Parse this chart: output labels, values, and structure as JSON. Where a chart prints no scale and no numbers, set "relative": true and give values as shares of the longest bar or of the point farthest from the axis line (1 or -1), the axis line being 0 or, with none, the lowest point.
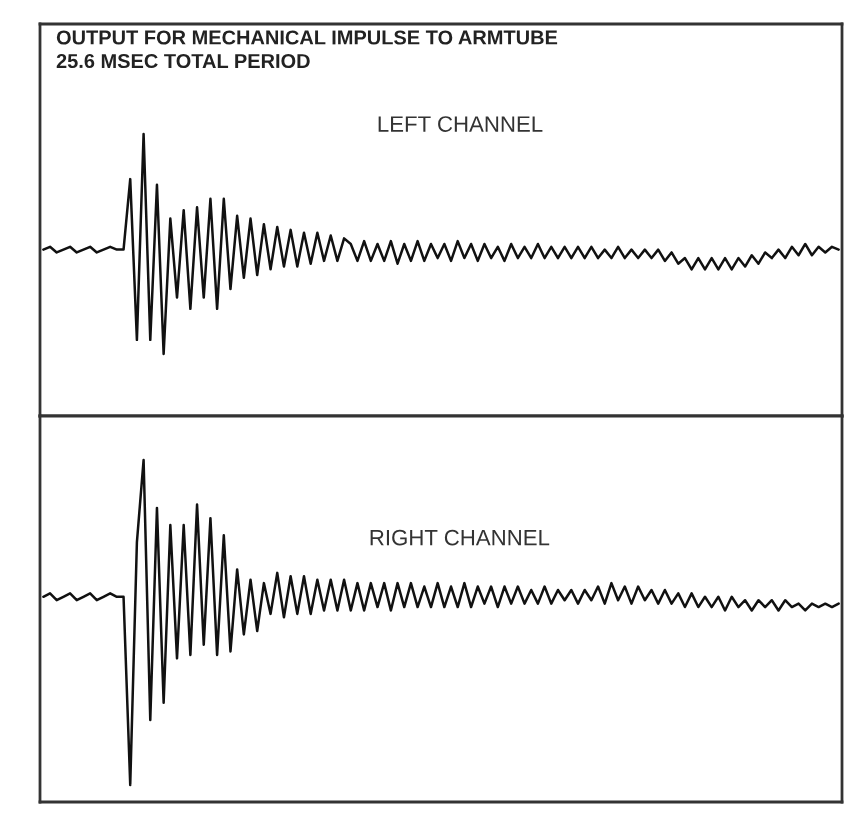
{
  "chart_data": [
    {
      "type": "line",
      "title": "OUTPUT FOR MECHANICAL IMPULSE TO ARMTUBE",
      "subtitle": "25.6 MSEC TOTAL PERIOD",
      "annotations": [
        "LEFT CHANNEL"
      ],
      "relative": true,
      "categories": [
        null,
        null,
        null,
        null,
        null,
        null,
        null,
        null,
        null,
        null,
        null,
        null,
        null,
        null,
        null,
        null,
        null,
        null,
        null,
        null,
        null,
        null,
        null,
        null,
        null,
        null,
        null,
        null,
        null,
        null,
        null,
        null,
        null,
        null,
        null,
        null,
        null,
        null,
        null,
        null,
        null,
        null,
        null,
        null,
        null,
        null,
        null,
        null,
        null,
        null,
        null,
        null,
        null,
        null,
        null,
        null,
        null,
        null,
        null,
        null,
        null,
        null,
        null,
        null,
        null,
        null,
        null,
        null,
        null,
        null,
        null,
        null,
        null,
        null,
        null,
        null,
        null,
        null,
        null,
        null,
        null,
        null,
        null,
        null,
        null,
        null,
        null,
        null,
        null,
        null,
        null,
        null,
        null,
        null,
        null,
        null,
        null,
        null,
        null,
        null,
        null,
        null,
        null,
        null,
        null,
        null,
        null,
        null,
        null,
        null,
        null,
        null,
        null,
        null,
        null,
        null,
        null,
        null,
        null,
        null
      ],
      "series": [
        {
          "color": "#111111",
          "values": [
            0.59,
            0.6,
            0.58,
            0.59,
            0.6,
            0.58,
            0.59,
            0.6,
            0.58,
            0.59,
            0.6,
            0.59,
            0.59,
            0.84,
            0.27,
            1.0,
            0.27,
            0.82,
            0.22,
            0.7,
            0.42,
            0.73,
            0.38,
            0.74,
            0.42,
            0.77,
            0.38,
            0.77,
            0.45,
            0.71,
            0.49,
            0.7,
            0.5,
            0.68,
            0.52,
            0.67,
            0.53,
            0.66,
            0.53,
            0.65,
            0.54,
            0.65,
            0.55,
            0.64,
            0.55,
            0.63,
            0.61,
            0.55,
            0.62,
            0.55,
            0.61,
            0.55,
            0.62,
            0.54,
            0.61,
            0.55,
            0.62,
            0.55,
            0.61,
            0.56,
            0.61,
            0.55,
            0.62,
            0.56,
            0.61,
            0.55,
            0.61,
            0.56,
            0.6,
            0.55,
            0.61,
            0.56,
            0.6,
            0.56,
            0.61,
            0.56,
            0.6,
            0.56,
            0.6,
            0.56,
            0.6,
            0.56,
            0.6,
            0.56,
            0.59,
            0.56,
            0.6,
            0.56,
            0.59,
            0.56,
            0.59,
            0.56,
            0.59,
            0.55,
            0.58,
            0.54,
            0.56,
            0.52,
            0.56,
            0.52,
            0.56,
            0.52,
            0.56,
            0.52,
            0.56,
            0.53,
            0.57,
            0.54,
            0.58,
            0.56,
            0.59,
            0.56,
            0.6,
            0.57,
            0.61,
            0.57,
            0.6,
            0.58,
            0.6,
            0.59
          ]
        }
      ]
    },
    {
      "type": "line",
      "annotations": [
        "RIGHT CHANNEL"
      ],
      "relative": true,
      "categories": [
        null,
        null,
        null,
        null,
        null,
        null,
        null,
        null,
        null,
        null,
        null,
        null,
        null,
        null,
        null,
        null,
        null,
        null,
        null,
        null,
        null,
        null,
        null,
        null,
        null,
        null,
        null,
        null,
        null,
        null,
        null,
        null,
        null,
        null,
        null,
        null,
        null,
        null,
        null,
        null,
        null,
        null,
        null,
        null,
        null,
        null,
        null,
        null,
        null,
        null,
        null,
        null,
        null,
        null,
        null,
        null,
        null,
        null,
        null,
        null,
        null,
        null,
        null,
        null,
        null,
        null,
        null,
        null,
        null,
        null,
        null,
        null,
        null,
        null,
        null,
        null,
        null,
        null,
        null,
        null,
        null,
        null,
        null,
        null,
        null,
        null,
        null,
        null,
        null,
        null,
        null,
        null,
        null,
        null,
        null,
        null,
        null,
        null,
        null,
        null,
        null,
        null,
        null,
        null,
        null,
        null,
        null,
        null,
        null,
        null,
        null,
        null,
        null,
        null,
        null,
        null,
        null,
        null,
        null,
        null
      ],
      "series": [
        {
          "color": "#111111",
          "values": [
            0.6,
            0.61,
            0.59,
            0.6,
            0.61,
            0.59,
            0.6,
            0.61,
            0.59,
            0.6,
            0.61,
            0.6,
            0.6,
            0.05,
            0.76,
            1.0,
            0.24,
            0.86,
            0.29,
            0.81,
            0.42,
            0.81,
            0.43,
            0.87,
            0.46,
            0.83,
            0.43,
            0.78,
            0.44,
            0.68,
            0.49,
            0.65,
            0.5,
            0.64,
            0.55,
            0.67,
            0.54,
            0.66,
            0.55,
            0.66,
            0.55,
            0.65,
            0.56,
            0.65,
            0.56,
            0.65,
            0.56,
            0.64,
            0.56,
            0.64,
            0.57,
            0.64,
            0.56,
            0.64,
            0.57,
            0.64,
            0.57,
            0.63,
            0.57,
            0.64,
            0.57,
            0.63,
            0.57,
            0.64,
            0.57,
            0.63,
            0.58,
            0.63,
            0.57,
            0.63,
            0.58,
            0.63,
            0.58,
            0.62,
            0.58,
            0.63,
            0.58,
            0.62,
            0.59,
            0.62,
            0.58,
            0.62,
            0.59,
            0.63,
            0.58,
            0.64,
            0.59,
            0.63,
            0.58,
            0.63,
            0.59,
            0.62,
            0.58,
            0.62,
            0.58,
            0.61,
            0.57,
            0.61,
            0.57,
            0.6,
            0.57,
            0.6,
            0.56,
            0.6,
            0.57,
            0.59,
            0.56,
            0.59,
            0.57,
            0.59,
            0.56,
            0.59,
            0.57,
            0.58,
            0.56,
            0.58,
            0.57,
            0.58,
            0.57,
            0.58
          ]
        }
      ]
    }
  ]
}
